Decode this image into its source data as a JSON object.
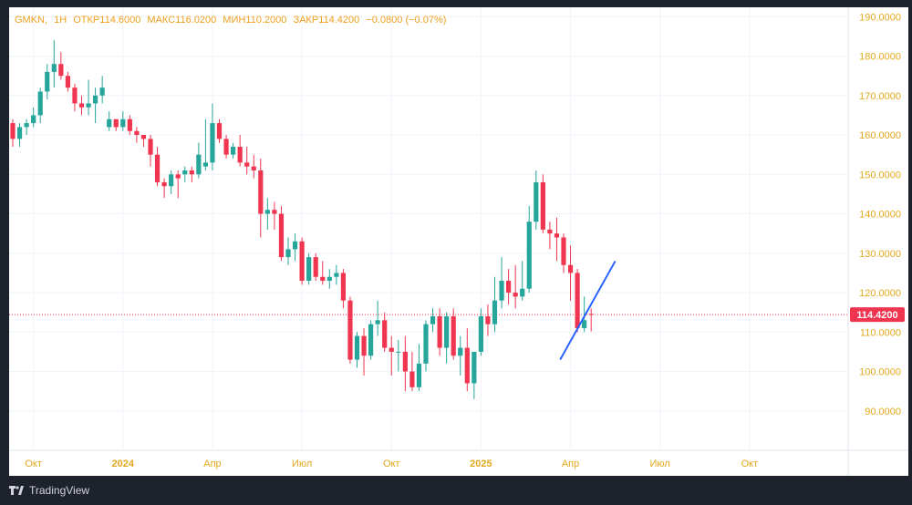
{
  "legend": {
    "symbol": "GMKN",
    "interval": "1Н",
    "open_label": "ОТКР",
    "open": "114.6000",
    "high_label": "МАКС",
    "high": "116.0200",
    "low_label": "МИН",
    "low": "110.2000",
    "close_label": "ЗАКР",
    "close": "114.4200",
    "change": "−0.0800 (−0.07%)"
  },
  "footer": {
    "brand": "TradingView"
  },
  "colors": {
    "up": "#26a69a",
    "down": "#ef3550",
    "axis_text": "#e3a81c",
    "price_label_bg": "#ef3550",
    "trendline": "#2962ff",
    "grid": "#f0f3fa"
  },
  "chart_data": {
    "type": "candlestick",
    "title": "GMKN, 1Н",
    "ylim": [
      80,
      191
    ],
    "y_ticks": [
      90,
      100,
      110,
      120,
      130,
      140,
      150,
      160,
      170,
      180,
      190
    ],
    "y_tick_labels": [
      "90.0000",
      "100.0000",
      "110.0000",
      "120.0000",
      "130.0000",
      "140.0000",
      "150.0000",
      "160.0000",
      "170.0000",
      "180.0000",
      "190.0000"
    ],
    "x_range": [
      0,
      95
    ],
    "x_ticks": [
      {
        "label": "Окт",
        "x": 3,
        "bold": false
      },
      {
        "label": "2024",
        "x": 16,
        "bold": true
      },
      {
        "label": "Апр",
        "x": 29,
        "bold": false
      },
      {
        "label": "Июл",
        "x": 42,
        "bold": false
      },
      {
        "label": "Окт",
        "x": 55,
        "bold": false
      },
      {
        "label": "2025",
        "x": 68,
        "bold": true
      },
      {
        "label": "Апр",
        "x": 81,
        "bold": false
      },
      {
        "label": "Июл",
        "x": 94,
        "bold": false
      },
      {
        "label": "Окт",
        "x": 107,
        "bold": false
      }
    ],
    "last_price": 114.42,
    "last_price_label": "114.4200",
    "trendline": {
      "x1": 79.5,
      "y1": 103,
      "x2": 87.5,
      "y2": 128
    },
    "candles": [
      [
        0,
        163,
        164,
        157,
        159
      ],
      [
        1,
        159,
        163,
        157,
        162
      ],
      [
        2,
        162,
        164,
        160,
        163
      ],
      [
        3,
        163,
        167,
        162,
        165
      ],
      [
        4,
        165,
        172,
        163,
        171
      ],
      [
        5,
        171,
        178,
        169,
        176
      ],
      [
        6,
        176,
        184,
        172,
        178
      ],
      [
        7,
        178,
        181,
        174,
        175
      ],
      [
        8,
        175,
        176,
        171,
        172
      ],
      [
        9,
        172,
        173,
        166,
        168
      ],
      [
        10,
        168,
        170,
        165,
        167
      ],
      [
        11,
        167,
        174,
        165,
        168
      ],
      [
        12,
        168,
        172,
        163,
        170
      ],
      [
        13,
        170,
        175,
        168,
        172
      ],
      [
        14,
        162,
        166,
        161,
        164
      ],
      [
        15,
        164,
        164,
        161,
        162
      ],
      [
        16,
        162,
        166,
        161,
        164
      ],
      [
        17,
        164,
        165,
        160,
        161
      ],
      [
        18,
        161,
        162,
        158,
        160
      ],
      [
        19,
        160,
        160,
        157,
        159
      ],
      [
        20,
        159,
        160,
        152,
        155
      ],
      [
        21,
        155,
        157,
        147,
        148
      ],
      [
        22,
        148,
        149,
        144,
        147
      ],
      [
        23,
        147,
        151,
        145,
        150
      ],
      [
        24,
        150,
        151,
        144,
        149
      ],
      [
        25,
        150,
        152,
        148,
        151
      ],
      [
        26,
        151,
        152,
        148,
        150
      ],
      [
        27,
        150,
        158,
        149,
        155
      ],
      [
        28,
        152,
        164,
        151,
        153
      ],
      [
        29,
        153,
        168,
        151,
        163
      ],
      [
        30,
        163,
        164,
        158,
        159
      ],
      [
        31,
        159,
        160,
        154,
        155
      ],
      [
        32,
        155,
        158,
        154,
        157
      ],
      [
        33,
        157,
        160,
        152,
        153
      ],
      [
        34,
        153,
        157,
        150,
        152
      ],
      [
        35,
        152,
        155,
        149,
        151
      ],
      [
        36,
        151,
        154,
        134,
        140
      ],
      [
        37,
        140,
        144,
        136,
        141
      ],
      [
        38,
        141,
        143,
        136,
        140
      ],
      [
        39,
        140,
        142,
        128,
        129
      ],
      [
        40,
        129,
        134,
        127,
        131
      ],
      [
        41,
        131,
        135,
        128,
        133
      ],
      [
        42,
        133,
        134,
        122,
        123
      ],
      [
        43,
        123,
        130,
        122,
        129
      ],
      [
        44,
        129,
        130,
        123,
        124
      ],
      [
        45,
        124,
        128,
        122,
        123
      ],
      [
        46,
        123,
        126,
        121,
        124
      ],
      [
        47,
        124,
        127,
        122,
        125
      ],
      [
        48,
        125,
        126,
        116,
        118
      ],
      [
        49,
        118,
        119,
        102,
        103
      ],
      [
        50,
        103,
        110,
        101,
        109
      ],
      [
        51,
        109,
        111,
        99,
        104
      ],
      [
        52,
        104,
        113,
        103,
        112
      ],
      [
        53,
        112,
        118,
        109,
        113
      ],
      [
        54,
        113,
        115,
        105,
        106
      ],
      [
        55,
        106,
        109,
        99,
        105
      ],
      [
        56,
        105,
        108,
        100,
        105
      ],
      [
        57,
        105,
        109,
        95,
        100
      ],
      [
        58,
        100,
        105,
        95,
        96
      ],
      [
        59,
        96,
        107,
        95,
        102
      ],
      [
        60,
        102,
        113,
        100,
        112
      ],
      [
        61,
        112,
        116,
        110,
        114
      ],
      [
        62,
        114,
        116,
        104,
        106
      ],
      [
        63,
        106,
        115,
        102,
        114
      ],
      [
        64,
        114,
        116,
        103,
        104
      ],
      [
        65,
        104,
        109,
        99,
        106
      ],
      [
        66,
        106,
        111,
        95,
        97
      ],
      [
        67,
        97,
        104,
        93,
        105
      ],
      [
        68,
        105,
        116,
        104,
        114
      ],
      [
        69,
        114,
        117,
        109,
        112
      ],
      [
        70,
        112,
        124,
        110,
        118
      ],
      [
        71,
        118,
        129,
        116,
        123
      ],
      [
        72,
        123,
        126,
        117,
        120
      ],
      [
        73,
        120,
        127,
        116,
        119
      ],
      [
        74,
        119,
        128,
        118,
        121
      ],
      [
        75,
        121,
        142,
        120,
        138
      ],
      [
        76,
        138,
        151,
        136,
        148
      ],
      [
        77,
        148,
        150,
        135,
        136
      ],
      [
        78,
        136,
        138,
        131,
        135
      ],
      [
        79,
        135,
        139,
        128,
        134
      ],
      [
        80,
        134,
        135,
        125,
        127
      ],
      [
        81,
        127,
        132,
        118,
        125
      ],
      [
        82,
        125,
        126,
        110,
        111
      ],
      [
        83,
        111,
        119,
        110,
        113
      ],
      [
        84,
        114.6,
        116.02,
        110.2,
        114.42
      ]
    ]
  }
}
